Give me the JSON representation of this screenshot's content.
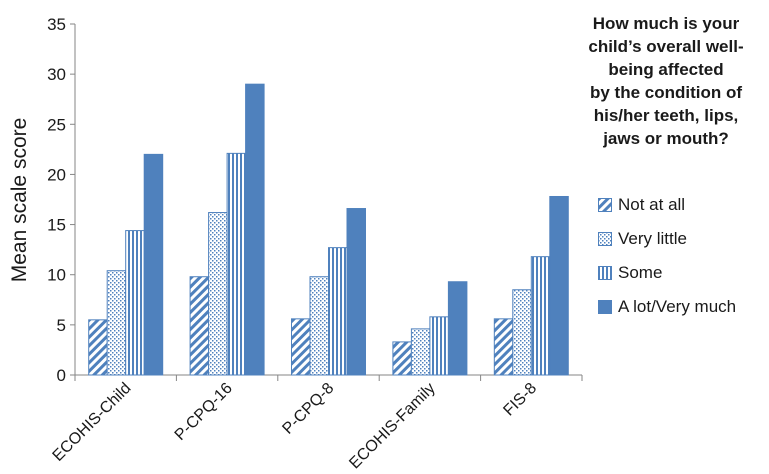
{
  "chart_data": {
    "type": "bar",
    "categories": [
      "ECOHIS-Child",
      "P-CPQ-16",
      "P-CPQ-8",
      "ECOHIS-Family",
      "FIS-8"
    ],
    "series": [
      {
        "name": "Not at all",
        "values": [
          5.5,
          9.8,
          5.6,
          3.3,
          5.6
        ],
        "pattern": "diagonal"
      },
      {
        "name": "Very little",
        "values": [
          10.4,
          16.2,
          9.8,
          4.6,
          8.5
        ],
        "pattern": "dots"
      },
      {
        "name": "Some",
        "values": [
          14.4,
          22.1,
          12.7,
          5.8,
          11.8
        ],
        "pattern": "vertical"
      },
      {
        "name": "A lot/Very much",
        "values": [
          22.0,
          29.0,
          16.6,
          9.3,
          17.8
        ],
        "pattern": "solid"
      }
    ],
    "title": "",
    "xlabel": "",
    "ylabel": "Mean scale score",
    "ylim": [
      0,
      35
    ],
    "yticks": [
      0,
      5,
      10,
      15,
      20,
      25,
      30,
      35
    ],
    "legend_title": "How much is your\nchild’s overall well-\nbeing affected\nby the condition of\nhis/her teeth, lips,\njaws or mouth?",
    "legend_position": "right",
    "grid": false,
    "color": "#4f81bd"
  }
}
